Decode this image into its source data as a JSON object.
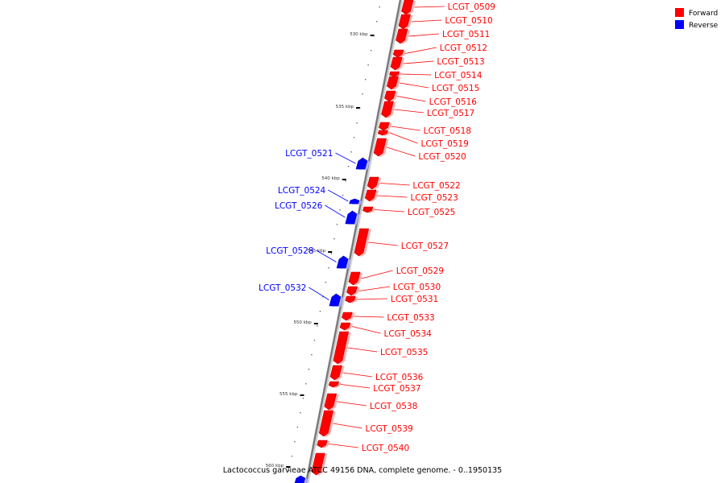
{
  "caption": "Lactococcus garvieae ATCC 49156 DNA, complete genome. - 0..1950135",
  "legend": [
    {
      "label": "Forward",
      "color": "#ff0000"
    },
    {
      "label": "Reverse",
      "color": "#0000ff"
    }
  ],
  "ticks": [
    "530 kbp",
    "535 kbp",
    "540 kbp",
    "545 kbp",
    "550 kbp",
    "555 kbp",
    "560 kbp"
  ],
  "genes": [
    {
      "name": "LCGT_0509",
      "strand": "Forward"
    },
    {
      "name": "LCGT_0510",
      "strand": "Forward"
    },
    {
      "name": "LCGT_0511",
      "strand": "Forward"
    },
    {
      "name": "LCGT_0512",
      "strand": "Forward"
    },
    {
      "name": "LCGT_0513",
      "strand": "Forward"
    },
    {
      "name": "LCGT_0514",
      "strand": "Forward"
    },
    {
      "name": "LCGT_0515",
      "strand": "Forward"
    },
    {
      "name": "LCGT_0516",
      "strand": "Forward"
    },
    {
      "name": "LCGT_0517",
      "strand": "Forward"
    },
    {
      "name": "LCGT_0518",
      "strand": "Forward"
    },
    {
      "name": "LCGT_0519",
      "strand": "Forward"
    },
    {
      "name": "LCGT_0520",
      "strand": "Forward"
    },
    {
      "name": "LCGT_0521",
      "strand": "Reverse"
    },
    {
      "name": "LCGT_0522",
      "strand": "Forward"
    },
    {
      "name": "LCGT_0523",
      "strand": "Forward"
    },
    {
      "name": "LCGT_0524",
      "strand": "Reverse"
    },
    {
      "name": "LCGT_0525",
      "strand": "Forward"
    },
    {
      "name": "LCGT_0526",
      "strand": "Reverse"
    },
    {
      "name": "LCGT_0527",
      "strand": "Forward"
    },
    {
      "name": "LCGT_0528",
      "strand": "Reverse"
    },
    {
      "name": "LCGT_0529",
      "strand": "Forward"
    },
    {
      "name": "LCGT_0530",
      "strand": "Forward"
    },
    {
      "name": "LCGT_0531",
      "strand": "Forward"
    },
    {
      "name": "LCGT_0532",
      "strand": "Reverse"
    },
    {
      "name": "LCGT_0533",
      "strand": "Forward"
    },
    {
      "name": "LCGT_0534",
      "strand": "Forward"
    },
    {
      "name": "LCGT_0535",
      "strand": "Forward"
    },
    {
      "name": "LCGT_0536",
      "strand": "Forward"
    },
    {
      "name": "LCGT_0537",
      "strand": "Forward"
    },
    {
      "name": "LCGT_0538",
      "strand": "Forward"
    },
    {
      "name": "LCGT_0539",
      "strand": "Forward"
    },
    {
      "name": "LCGT_0540",
      "strand": "Forward"
    },
    {
      "name": "",
      "strand": "Forward"
    },
    {
      "name": "",
      "strand": "Reverse"
    }
  ]
}
